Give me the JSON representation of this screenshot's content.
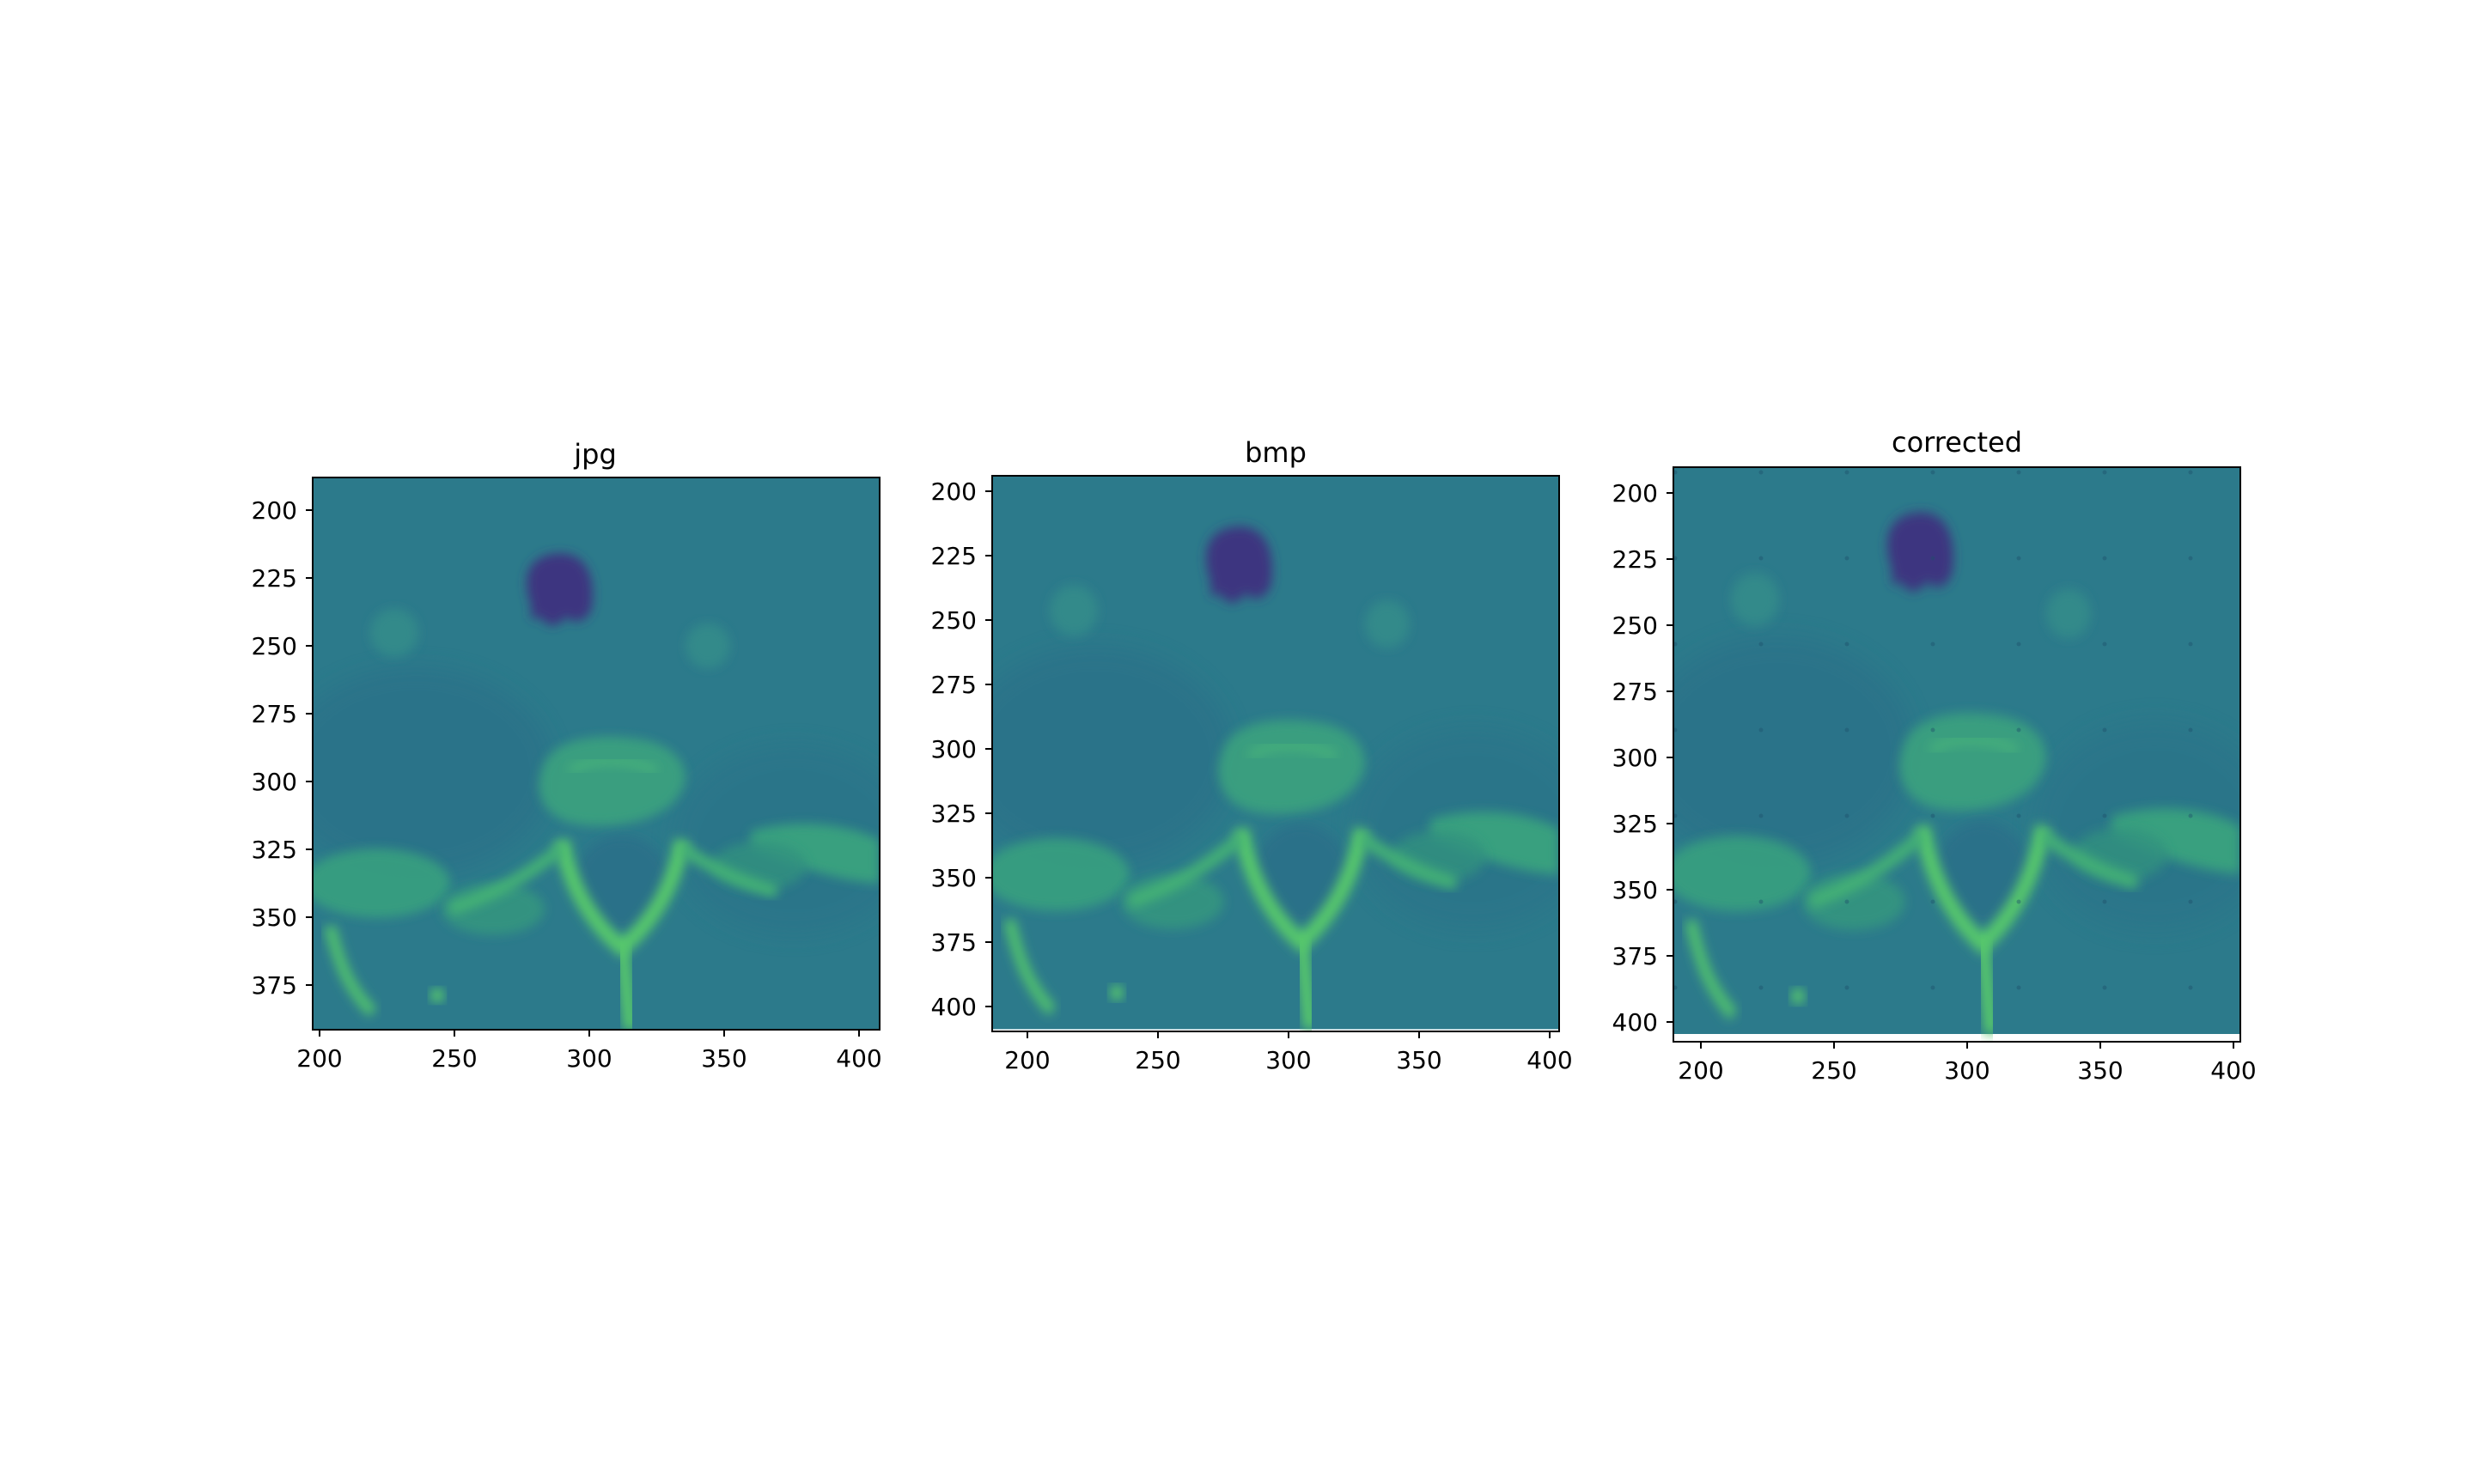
{
  "figure": {
    "panels": [
      {
        "title": "jpg",
        "x_ticks": [
          "200",
          "250",
          "300",
          "350",
          "400"
        ],
        "y_ticks": [
          "200",
          "225",
          "250",
          "275",
          "300",
          "325",
          "350",
          "375"
        ]
      },
      {
        "title": "bmp",
        "x_ticks": [
          "200",
          "250",
          "300",
          "350",
          "400"
        ],
        "y_ticks": [
          "200",
          "225",
          "250",
          "275",
          "300",
          "325",
          "350",
          "375",
          "400"
        ]
      },
      {
        "title": "corrected",
        "x_ticks": [
          "200",
          "250",
          "300",
          "350",
          "400"
        ],
        "y_ticks": [
          "200",
          "225",
          "250",
          "275",
          "300",
          "325",
          "350",
          "375",
          "400"
        ]
      }
    ],
    "colors": {
      "background_tissue": "#2b7a8c",
      "dark_canal": "#3e3680",
      "bone_bright": "#3fb07a",
      "bone_highlight": "#5ccc6a"
    }
  }
}
